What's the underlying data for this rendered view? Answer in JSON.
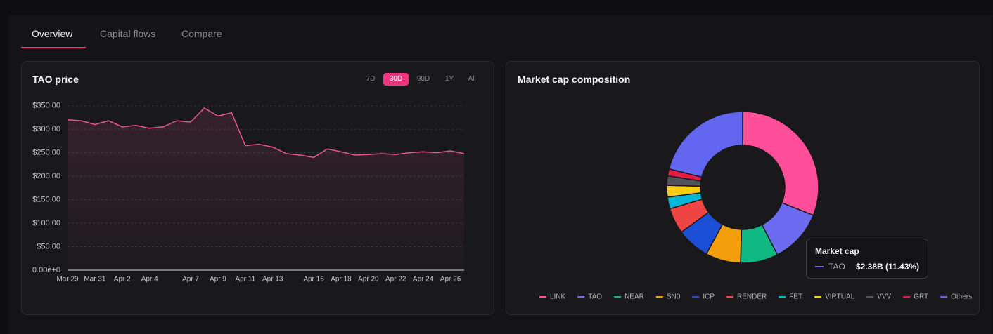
{
  "tabs": [
    "Overview",
    "Capital flows",
    "Compare"
  ],
  "ranges": [
    "7D",
    "30D",
    "90D",
    "1Y",
    "All"
  ],
  "chart_data": [
    {
      "type": "line",
      "title": "TAO price",
      "color": "#e8578a",
      "x": [
        "Mar 29",
        "Mar 30",
        "Mar 31",
        "Apr 1",
        "Apr 2",
        "Apr 3",
        "Apr 4",
        "Apr 5",
        "Apr 6",
        "Apr 7",
        "Apr 8",
        "Apr 9",
        "Apr 10",
        "Apr 11",
        "Apr 12",
        "Apr 13",
        "Apr 14",
        "Apr 15",
        "Apr 16",
        "Apr 17",
        "Apr 18",
        "Apr 19",
        "Apr 20",
        "Apr 21",
        "Apr 22",
        "Apr 23",
        "Apr 24",
        "Apr 25",
        "Apr 26",
        "Apr 27"
      ],
      "values": [
        320,
        318,
        310,
        318,
        305,
        308,
        302,
        305,
        318,
        315,
        345,
        328,
        335,
        265,
        268,
        262,
        248,
        245,
        240,
        258,
        252,
        245,
        246,
        248,
        246,
        250,
        252,
        250,
        254,
        248
      ],
      "xticks": [
        "Mar 29",
        "Mar 31",
        "Apr 2",
        "Apr 4",
        "Apr 7",
        "Apr 9",
        "Apr 11",
        "Apr 13",
        "Apr 16",
        "Apr 18",
        "Apr 20",
        "Apr 22",
        "Apr 24",
        "Apr 26"
      ],
      "ylim": [
        0,
        360
      ],
      "yticks": [
        {
          "value": 0,
          "label": "0.00e+0"
        },
        {
          "value": 50,
          "label": "$50.00"
        },
        {
          "value": 100,
          "label": "$100.00"
        },
        {
          "value": 150,
          "label": "$150.00"
        },
        {
          "value": 200,
          "label": "$200.00"
        },
        {
          "value": 250,
          "label": "$250.00"
        },
        {
          "value": 300,
          "label": "$300.00"
        },
        {
          "value": 350,
          "label": "$350.00"
        }
      ],
      "grid": true
    },
    {
      "type": "pie",
      "title": "Market cap composition",
      "categories": [
        "LINK",
        "TAO",
        "NEAR",
        "SN0",
        "ICP",
        "RENDER",
        "FET",
        "VIRTUAL",
        "VVV",
        "GRT",
        "Others"
      ],
      "values": [
        31,
        11.43,
        8,
        7.5,
        7,
        5.5,
        2.5,
        2.5,
        2,
        1.5,
        21.07
      ],
      "colors": [
        "#ff4f9a",
        "#6b6bf0",
        "#10b981",
        "#f59e0b",
        "#1d4ed8",
        "#ef4444",
        "#06b6d4",
        "#facc15",
        "#52525b",
        "#e11d48",
        "#6366f1"
      ],
      "tooltip": {
        "title": "Market cap",
        "name": "TAO",
        "value": "$2.38B (11.43%)"
      }
    }
  ]
}
